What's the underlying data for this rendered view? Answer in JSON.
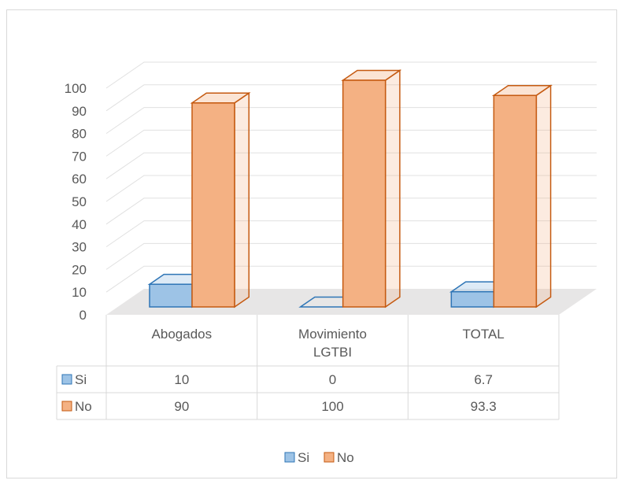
{
  "chart_data": {
    "type": "bar",
    "categories": [
      "Abogados",
      "Movimiento\nLGTBI",
      "TOTAL"
    ],
    "series": [
      {
        "name": "Si",
        "values": [
          10,
          0,
          6.7
        ],
        "color": "#9dc3e6",
        "stroke": "#2e75b6"
      },
      {
        "name": "No",
        "values": [
          90,
          100,
          93.3
        ],
        "color": "#f4b183",
        "stroke": "#c55a11"
      }
    ],
    "yticks": [
      0,
      10,
      20,
      30,
      40,
      50,
      60,
      70,
      80,
      90,
      100
    ],
    "ylim": [
      0,
      100
    ],
    "grid": true,
    "legend": "bottom",
    "data_table": true,
    "title": "",
    "xlabel": "",
    "ylabel": ""
  }
}
